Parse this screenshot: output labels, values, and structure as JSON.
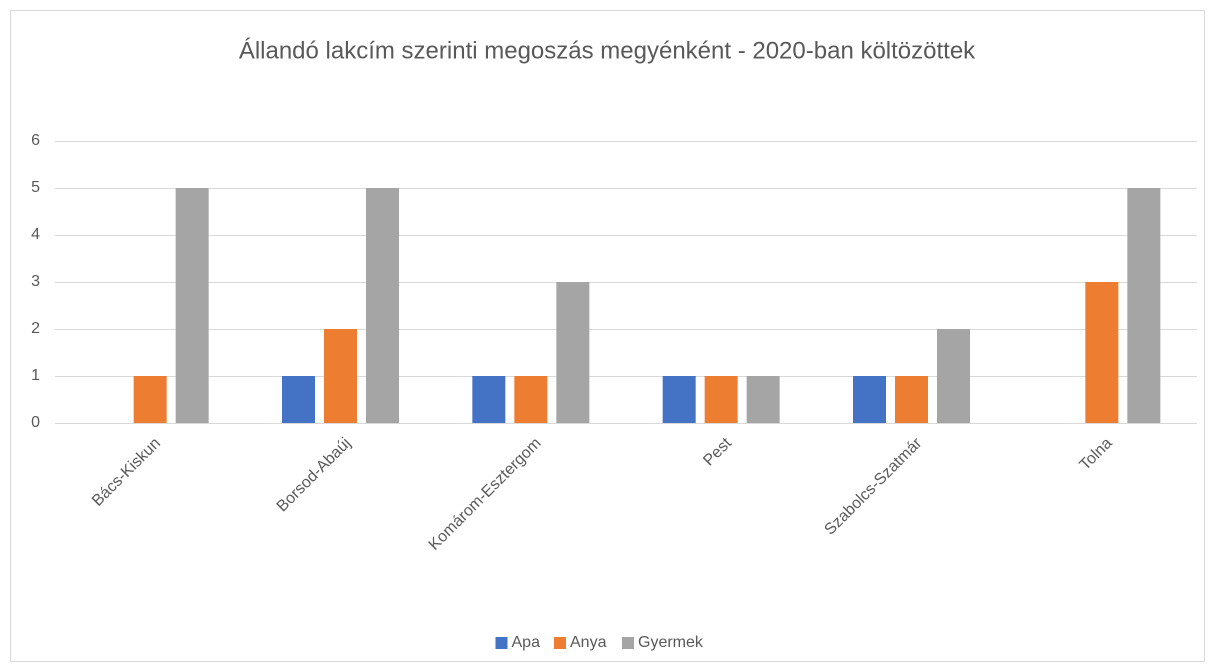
{
  "chart_data": {
    "type": "bar",
    "title": "Állandó lakcím szerinti megoszás megyénként - 2020-ban költözöttek",
    "categories": [
      "Bács-Kiskun",
      "Borsod-Abaúj",
      "Komárom-Esztergom",
      "Pest",
      "Szabolcs-Szatmár",
      "Tolna"
    ],
    "series": [
      {
        "name": "Apa",
        "color": "#4472c4",
        "values": [
          0,
          1,
          1,
          1,
          1,
          0
        ]
      },
      {
        "name": "Anya",
        "color": "#ed7d31",
        "values": [
          1,
          2,
          1,
          1,
          1,
          3
        ]
      },
      {
        "name": "Gyermek",
        "color": "#a5a5a5",
        "values": [
          5,
          5,
          3,
          1,
          2,
          5
        ]
      }
    ],
    "ylim": [
      0,
      6
    ],
    "yticks": [
      0,
      1,
      2,
      3,
      4,
      5,
      6
    ],
    "grid": true,
    "legend": "bottom"
  }
}
